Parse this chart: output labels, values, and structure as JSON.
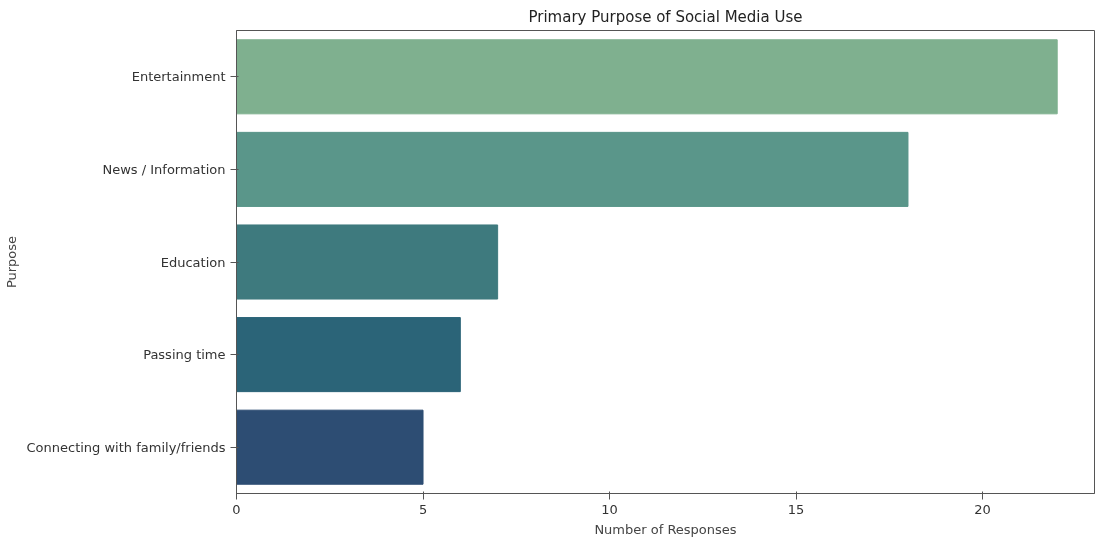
{
  "chart_data": {
    "type": "bar",
    "orientation": "horizontal",
    "title": "Primary Purpose of Social Media Use",
    "xlabel": "Number of Responses",
    "ylabel": "Purpose",
    "categories": [
      "Entertainment",
      "News / Information",
      "Education",
      "Passing time",
      "Connecting with family/friends"
    ],
    "values": [
      22,
      18,
      7,
      6,
      5
    ],
    "colors": [
      "#7fb08f",
      "#5a968a",
      "#3e7a7e",
      "#2b6478",
      "#2d4d73"
    ],
    "xlim": [
      0,
      23
    ],
    "xticks": [
      0,
      5,
      10,
      15,
      20
    ],
    "grid": false
  }
}
